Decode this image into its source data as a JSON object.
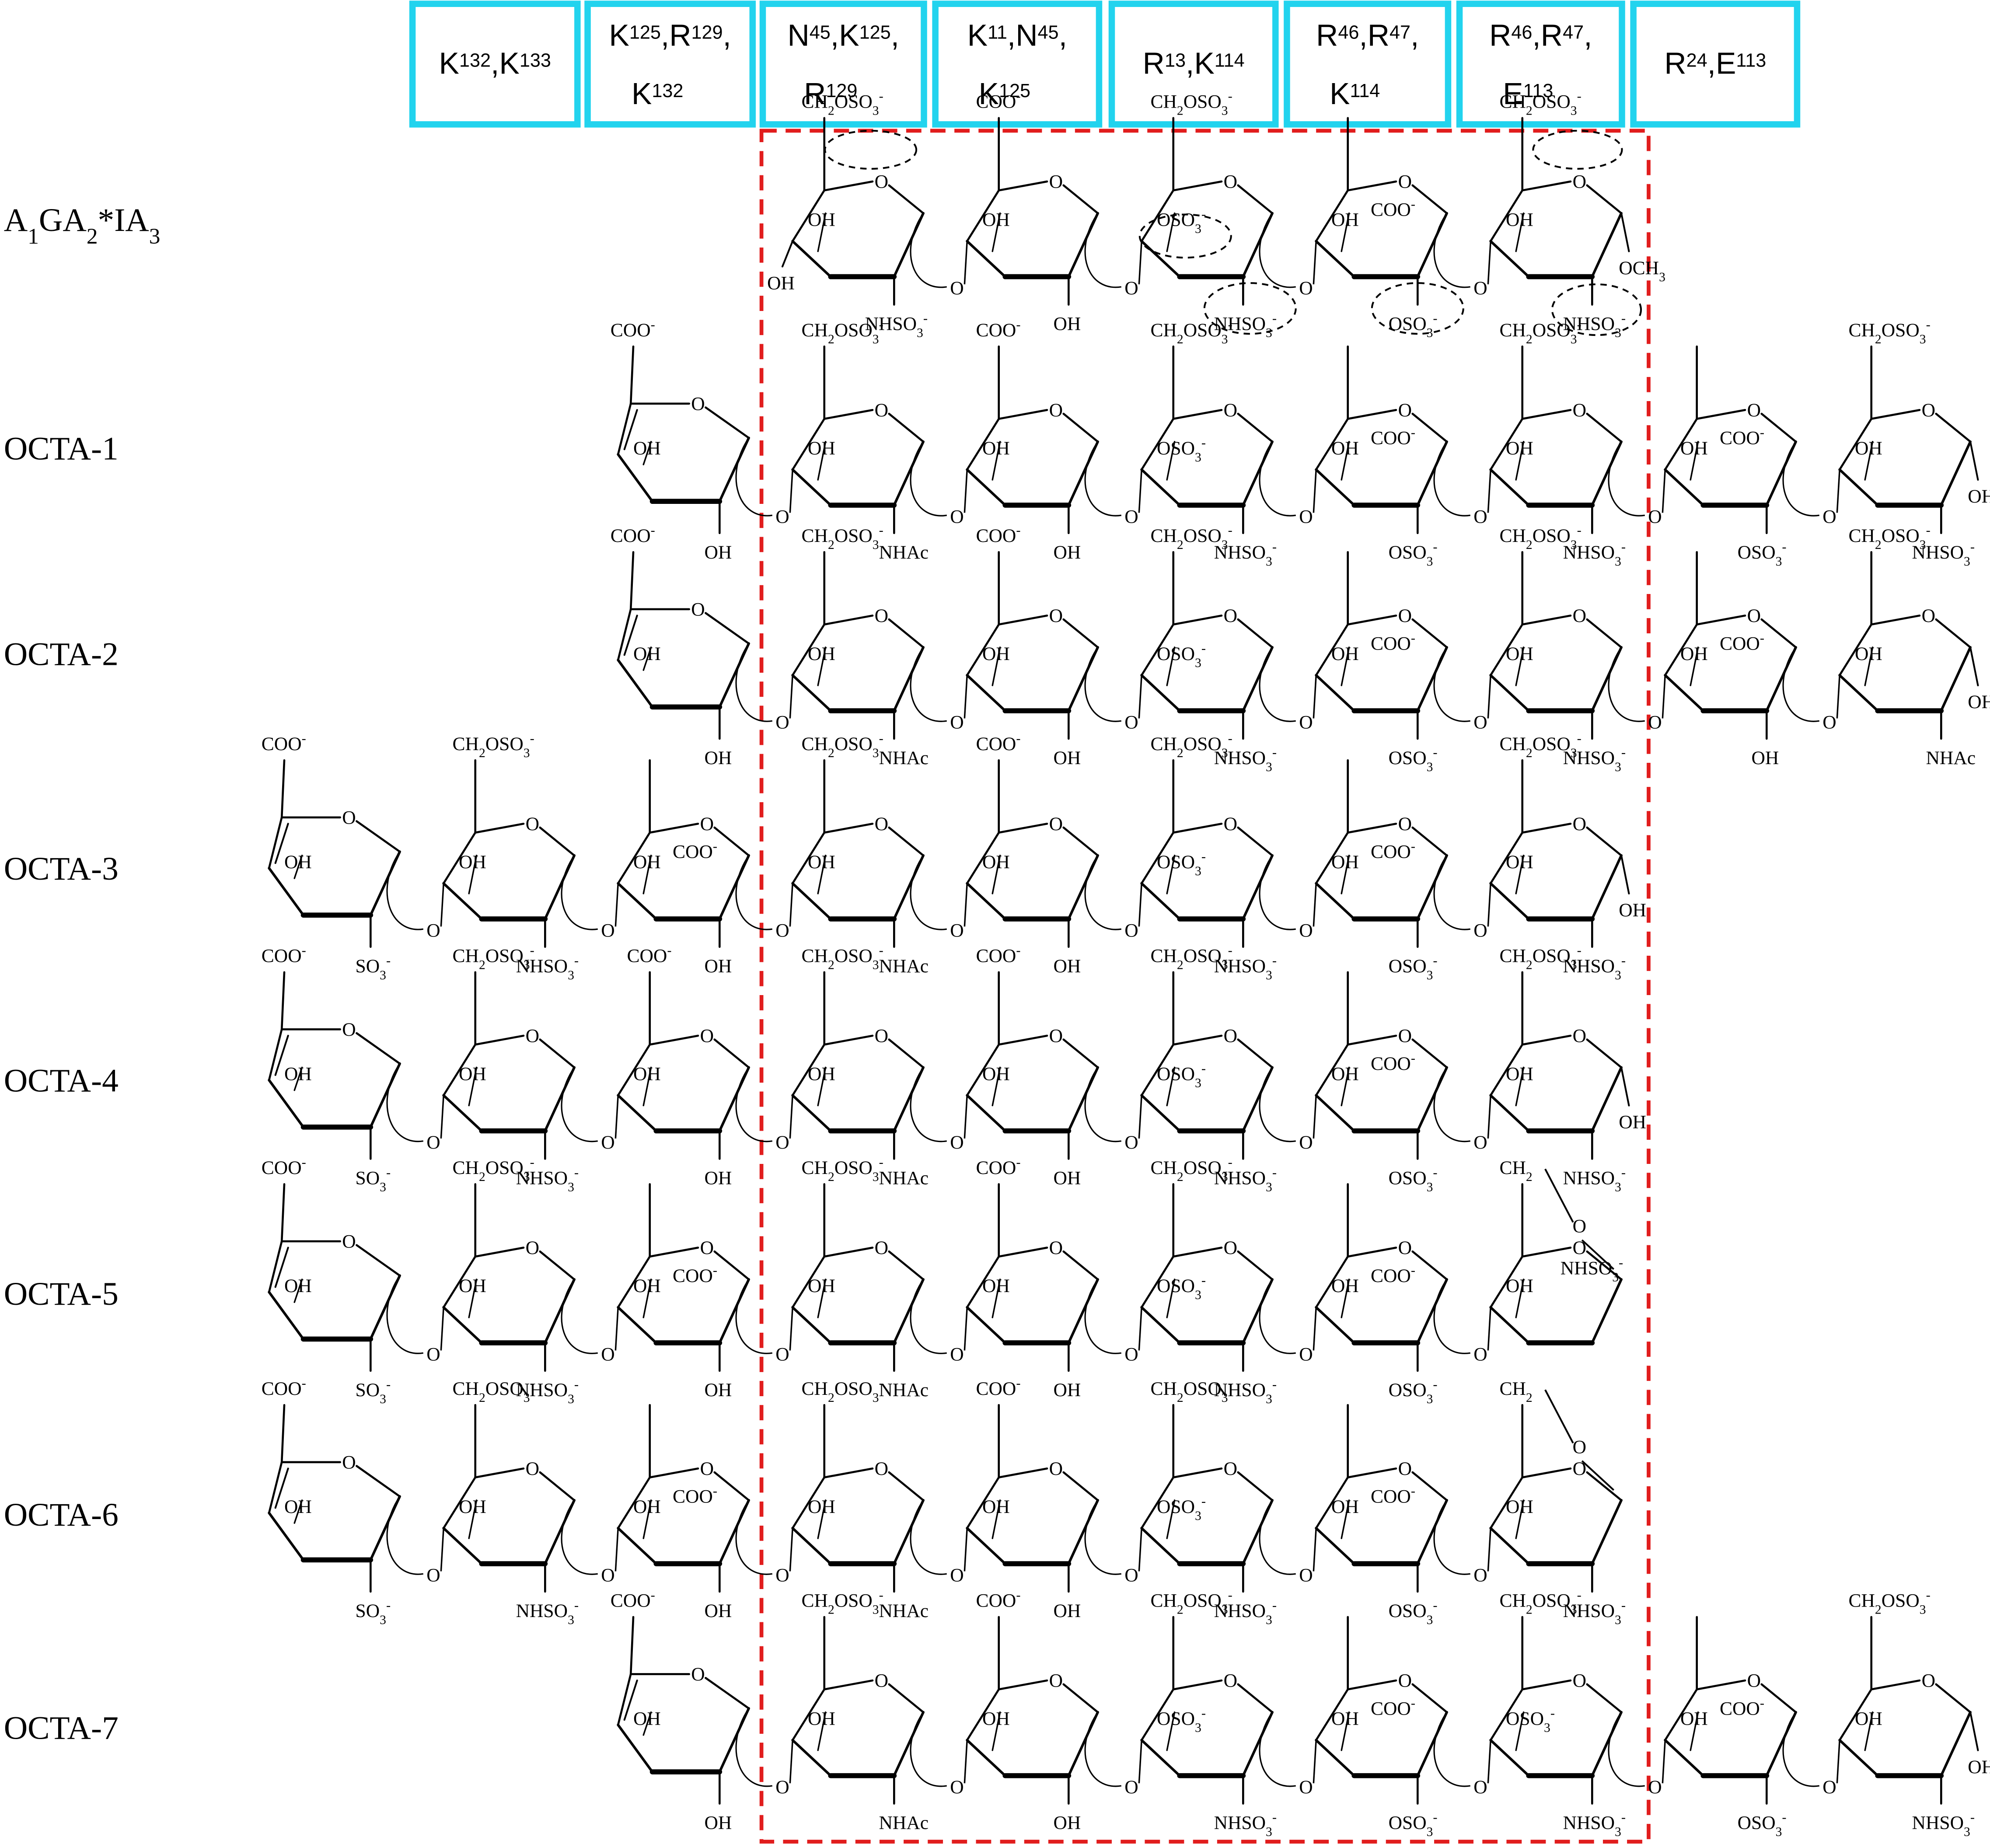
{
  "residue_boxes": [
    {
      "line1": "K132,K133",
      "line2": ""
    },
    {
      "line1": "K125,R129,",
      "line2": "K132"
    },
    {
      "line1": "N45,K125,",
      "line2": "R129"
    },
    {
      "line1": "K11,N45,",
      "line2": "K125"
    },
    {
      "line1": "R13,K114",
      "line2": ""
    },
    {
      "line1": "R46,R47,",
      "line2": "K114"
    },
    {
      "line1": "R46,R47,",
      "line2": "E113"
    },
    {
      "line1": "R24,E113",
      "line2": ""
    }
  ],
  "structures": [
    {
      "label": "A1GA2*IA3",
      "start": 3,
      "units": [
        {
          "top": "CH2OSO3-",
          "r2": "OH",
          "r3": "OH",
          "b": "NHSO3-",
          "ring": "OH"
        },
        {
          "top": "COO-",
          "r2": "OH",
          "b": "OH"
        },
        {
          "top": "CH2OSO3-",
          "r2": "OSO3-",
          "b": "NHSO3-"
        },
        {
          "top": "COO-",
          "r2": "OH",
          "b": "OSO3-",
          "idu": true
        },
        {
          "top": "CH2OSO3-",
          "r2": "OH",
          "b": "NHSO3-",
          "end": "OCH3"
        }
      ]
    },
    {
      "label": "OCTA-1",
      "start": 2,
      "units": [
        {
          "top": "COO-",
          "r2": "OH",
          "b": "OH",
          "dhua": true
        },
        {
          "top": "CH2OSO3-",
          "r2": "OH",
          "b": "NHAc"
        },
        {
          "top": "COO-",
          "r2": "OH",
          "b": "OH"
        },
        {
          "top": "CH2OSO3-",
          "r2": "OSO3-",
          "b": "NHSO3-"
        },
        {
          "top": "COO-",
          "r2": "OH",
          "b": "OSO3-",
          "idu": true
        },
        {
          "top": "CH2OSO3-",
          "r2": "OH",
          "b": "NHSO3-"
        },
        {
          "top": "COO-",
          "r2": "OH",
          "b": "OSO3-",
          "idu": true
        },
        {
          "top": "CH2OSO3-",
          "r2": "OH",
          "b": "NHSO3-",
          "end": "OH"
        }
      ]
    },
    {
      "label": "OCTA-2",
      "start": 2,
      "units": [
        {
          "top": "COO-",
          "r2": "OH",
          "b": "OH",
          "dhua": true
        },
        {
          "top": "CH2OSO3-",
          "r2": "OH",
          "b": "NHAc"
        },
        {
          "top": "COO-",
          "r2": "OH",
          "b": "OH"
        },
        {
          "top": "CH2OSO3-",
          "r2": "OSO3-",
          "b": "NHSO3-"
        },
        {
          "top": "COO-",
          "r2": "OH",
          "b": "OSO3-",
          "idu": true
        },
        {
          "top": "CH2OSO3-",
          "r2": "OH",
          "b": "NHSO3-"
        },
        {
          "top": "COO-",
          "r2": "OH",
          "b": "OH",
          "idu": true
        },
        {
          "top": "CH2OSO3-",
          "r2": "OH",
          "b": "NHAc",
          "end": "OH"
        }
      ]
    },
    {
      "label": "OCTA-3",
      "start": 0,
      "units": [
        {
          "top": "COO-",
          "r2": "OH",
          "b": "SO3-",
          "dhua": true
        },
        {
          "top": "CH2OSO3-",
          "r2": "OH",
          "b": "NHSO3-"
        },
        {
          "top": "COO-",
          "r2": "OH",
          "b": "OH",
          "idu": true
        },
        {
          "top": "CH2OSO3-",
          "r2": "OH",
          "b": "NHAc"
        },
        {
          "top": "COO-",
          "r2": "OH",
          "b": "OH"
        },
        {
          "top": "CH2OSO3-",
          "r2": "OSO3-",
          "b": "NHSO3-"
        },
        {
          "top": "COO-",
          "r2": "OH",
          "b": "OSO3-",
          "idu": true
        },
        {
          "top": "CH2OSO3-",
          "r2": "OH",
          "b": "NHSO3-",
          "end": "OH"
        }
      ]
    },
    {
      "label": "OCTA-4",
      "start": 0,
      "units": [
        {
          "top": "COO-",
          "r2": "OH",
          "b": "SO3-",
          "dhua": true
        },
        {
          "top": "CH2OSO3-",
          "r2": "OH",
          "b": "NHSO3-"
        },
        {
          "top": "COO-",
          "r2": "OH",
          "b": "OH"
        },
        {
          "top": "CH2OSO3-",
          "r2": "OH",
          "b": "NHAc"
        },
        {
          "top": "COO-",
          "r2": "OH",
          "b": "OH"
        },
        {
          "top": "CH2OSO3-",
          "r2": "OSO3-",
          "b": "NHSO3-"
        },
        {
          "top": "COO-",
          "r2": "OH",
          "b": "OSO3-",
          "idu": true
        },
        {
          "top": "CH2OSO3-",
          "r2": "OH",
          "b": "NHSO3-",
          "end": "OH"
        }
      ]
    },
    {
      "label": "OCTA-5",
      "start": 0,
      "units": [
        {
          "top": "COO-",
          "r2": "OH",
          "b": "SO3-",
          "dhua": true
        },
        {
          "top": "CH2OSO3-",
          "r2": "OH",
          "b": "NHSO3-"
        },
        {
          "top": "COO-",
          "r2": "OH",
          "b": "OH",
          "idu": true
        },
        {
          "top": "CH2OSO3-",
          "r2": "OH",
          "b": "NHAc"
        },
        {
          "top": "COO-",
          "r2": "OH",
          "b": "OH"
        },
        {
          "top": "CH2OSO3-",
          "r2": "OSO3-",
          "b": "NHSO3-"
        },
        {
          "top": "COO-",
          "r2": "OH",
          "b": "OSO3-",
          "idu": true
        },
        {
          "top": "CH2",
          "r2": "OH",
          "anhydro": true,
          "inner": "NHSO3-"
        }
      ]
    },
    {
      "label": "OCTA-6",
      "start": 0,
      "units": [
        {
          "top": "COO-",
          "r2": "OH",
          "b": "SO3-",
          "dhua": true
        },
        {
          "top": "CH2OSO3-",
          "r2": "OH",
          "b": "NHSO3-"
        },
        {
          "top": "COO-",
          "r2": "OH",
          "b": "OH",
          "idu": true
        },
        {
          "top": "CH2OSO3-",
          "r2": "OH",
          "b": "NHAc"
        },
        {
          "top": "COO-",
          "r2": "OH",
          "b": "OH"
        },
        {
          "top": "CH2OSO3-",
          "r2": "OSO3-",
          "b": "NHSO3-"
        },
        {
          "top": "COO-",
          "r2": "OH",
          "b": "OSO3-",
          "idu": true
        },
        {
          "top": "CH2",
          "r2": "OH",
          "b": "NHSO3-",
          "anhydro": true
        }
      ]
    },
    {
      "label": "OCTA-7",
      "start": 2,
      "units": [
        {
          "top": "COO-",
          "r2": "OH",
          "b": "OH",
          "dhua": true
        },
        {
          "top": "CH2OSO3-",
          "r2": "OH",
          "b": "NHAc"
        },
        {
          "top": "COO-",
          "r2": "OH",
          "b": "OH"
        },
        {
          "top": "CH2OSO3-",
          "r2": "OSO3-",
          "b": "NHSO3-"
        },
        {
          "top": "COO-",
          "r2": "OH",
          "b": "OSO3-",
          "idu": true
        },
        {
          "top": "CH2OSO3-",
          "r2": "OSO3-",
          "b": "NHSO3-"
        },
        {
          "top": "COO-",
          "r2": "OH",
          "b": "OSO3-",
          "idu": true
        },
        {
          "top": "CH2OSO3-",
          "r2": "OH",
          "b": "NHSO3-",
          "end": "OH"
        }
      ]
    }
  ],
  "highlighted_groups": [
    "OSO3-",
    "OSO3-",
    "NHSO3-",
    "OSO3-",
    "OSO3-",
    "NHSO3-"
  ],
  "ring_oxygen": "O",
  "link_oxygen": "O",
  "colors": {
    "box_border": "#22d3ee",
    "dashed_frame": "#e11d1d",
    "ink": "#000000"
  }
}
